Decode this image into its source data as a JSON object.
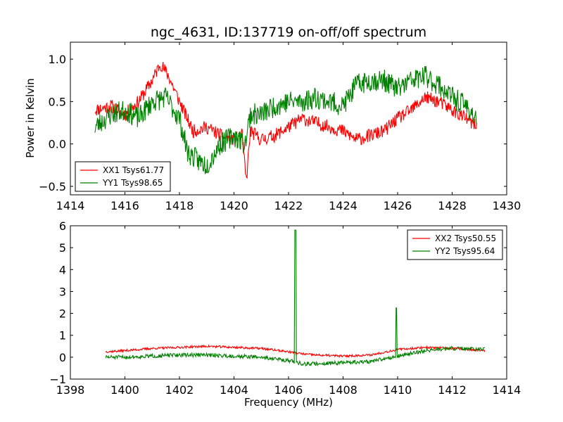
{
  "title": "ngc_4631, ID:137719 on-off/off spectrum",
  "chart_data": [
    {
      "type": "line",
      "title": "ngc_4631, ID:137719 on-off/off spectrum",
      "xlabel": "",
      "ylabel": "Power in Kelvin",
      "xlim": [
        1414,
        1430
      ],
      "ylim": [
        -0.6,
        1.2
      ],
      "xticks": [
        "1414",
        "1416",
        "1418",
        "1420",
        "1422",
        "1424",
        "1426",
        "1428",
        "1430"
      ],
      "yticks": [
        "−0.5",
        "0.0",
        "0.5",
        "1.0"
      ],
      "ytick_values": [
        -0.5,
        0.0,
        0.5,
        1.0
      ],
      "legend_position": "lower-left",
      "grid": false,
      "series": [
        {
          "name": "XX1 Tsys61.77",
          "color": "#ff0000",
          "x": [
            1414.9,
            1415.5,
            1416.0,
            1416.5,
            1417.0,
            1417.3,
            1417.6,
            1418.0,
            1418.5,
            1419.0,
            1419.5,
            1420.0,
            1420.3,
            1420.45,
            1420.6,
            1421.0,
            1421.5,
            1422.0,
            1422.5,
            1423.0,
            1423.5,
            1424.0,
            1424.5,
            1425.0,
            1425.5,
            1426.0,
            1426.5,
            1427.0,
            1427.5,
            1428.0,
            1428.5,
            1428.9
          ],
          "y": [
            0.4,
            0.45,
            0.35,
            0.5,
            0.75,
            0.95,
            0.8,
            0.5,
            0.15,
            0.2,
            0.1,
            0.05,
            0.1,
            -0.45,
            0.15,
            0.05,
            0.1,
            0.2,
            0.3,
            0.25,
            0.2,
            0.15,
            0.05,
            0.1,
            0.15,
            0.3,
            0.4,
            0.55,
            0.5,
            0.4,
            0.3,
            0.2
          ],
          "noise": 0.08,
          "seed": 11
        },
        {
          "name": "YY1 Tsys98.65",
          "color": "#008000",
          "x": [
            1414.9,
            1415.5,
            1416.0,
            1416.5,
            1417.0,
            1417.5,
            1418.0,
            1418.3,
            1418.7,
            1419.0,
            1419.5,
            1420.0,
            1420.4,
            1420.6,
            1421.0,
            1421.5,
            1422.0,
            1422.5,
            1423.0,
            1423.5,
            1424.0,
            1424.5,
            1425.0,
            1425.5,
            1426.0,
            1426.5,
            1427.0,
            1427.5,
            1428.0,
            1428.5,
            1428.9
          ],
          "y": [
            0.2,
            0.35,
            0.4,
            0.3,
            0.5,
            0.55,
            0.3,
            -0.1,
            -0.2,
            -0.25,
            0.0,
            0.1,
            0.0,
            0.35,
            0.35,
            0.45,
            0.5,
            0.5,
            0.55,
            0.5,
            0.45,
            0.7,
            0.75,
            0.75,
            0.65,
            0.75,
            0.8,
            0.7,
            0.55,
            0.45,
            0.3
          ],
          "noise": 0.13,
          "seed": 23
        }
      ]
    },
    {
      "type": "line",
      "title": "",
      "xlabel": "Frequency (MHz)",
      "ylabel": "",
      "xlim": [
        1398,
        1414
      ],
      "ylim": [
        -1,
        6
      ],
      "xticks": [
        "1398",
        "1400",
        "1402",
        "1404",
        "1406",
        "1408",
        "1410",
        "1412",
        "1414"
      ],
      "yticks": [
        "−1",
        "0",
        "1",
        "2",
        "3",
        "4",
        "5",
        "6"
      ],
      "ytick_values": [
        -1,
        0,
        1,
        2,
        3,
        4,
        5,
        6
      ],
      "legend_position": "upper-right",
      "grid": false,
      "series": [
        {
          "name": "XX2 Tsys50.55",
          "color": "#ff0000",
          "x": [
            1399.3,
            1400.0,
            1401.0,
            1402.0,
            1403.0,
            1404.0,
            1405.0,
            1406.0,
            1406.5,
            1407.0,
            1408.0,
            1409.0,
            1410.0,
            1411.0,
            1412.0,
            1413.2
          ],
          "y": [
            0.25,
            0.3,
            0.4,
            0.45,
            0.5,
            0.45,
            0.4,
            0.25,
            0.15,
            0.1,
            0.05,
            0.1,
            0.35,
            0.45,
            0.4,
            0.3
          ],
          "noise": 0.05,
          "seed": 37
        },
        {
          "name": "YY2 Tsys95.64",
          "color": "#008000",
          "x": [
            1399.3,
            1400.0,
            1401.0,
            1402.0,
            1403.0,
            1404.0,
            1405.0,
            1406.0,
            1406.5,
            1407.0,
            1408.0,
            1409.0,
            1410.0,
            1411.0,
            1412.0,
            1413.2
          ],
          "y": [
            0.0,
            0.0,
            0.05,
            0.1,
            0.1,
            0.05,
            0.0,
            -0.15,
            -0.3,
            -0.3,
            -0.25,
            -0.2,
            0.05,
            0.3,
            0.4,
            0.35
          ],
          "noise": 0.09,
          "seed": 51,
          "spikes": [
            {
              "x": 1406.25,
              "y": 5.8
            },
            {
              "x": 1409.95,
              "y": 2.25
            }
          ]
        }
      ]
    }
  ]
}
